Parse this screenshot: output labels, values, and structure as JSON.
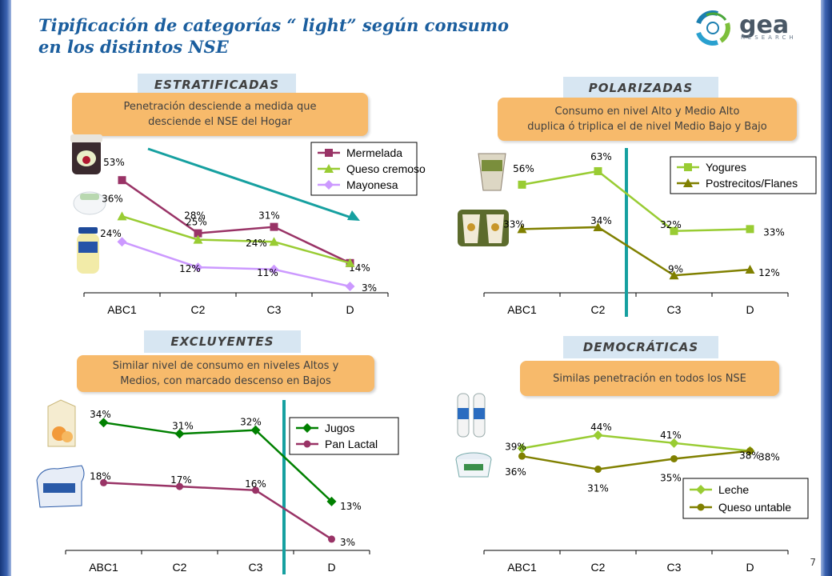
{
  "title": {
    "line1": "Tipificación de categorías “ light” según consumo",
    "line2": "en los distintos NSE"
  },
  "logo": {
    "text": "gea",
    "subtext": "RESEARCH"
  },
  "page_number": "7",
  "colors": {
    "title": "#1b5e9e",
    "note_bg": "#f7ba6b",
    "category_bg": "#d7e6f2",
    "divider": "#16a0a0"
  },
  "panels": [
    {
      "category": "ESTRATIFICADAS",
      "note": [
        "Penetración desciende a medida que",
        "desciende el NSE del Hogar"
      ]
    },
    {
      "category": "POLARIZADAS",
      "note": [
        "Consumo en nivel Alto y Medio Alto",
        "duplica ó triplica el de nivel Medio Bajo y Bajo"
      ]
    },
    {
      "category": "EXCLUYENTES",
      "note": [
        "Similar nivel de consumo en niveles Altos y",
        "Medios, con  marcado descenso en Bajos"
      ]
    },
    {
      "category": "DEMOCRÁTICAS",
      "note": [
        "Similas penetración en todos los NSE"
      ]
    }
  ],
  "chart_data": [
    {
      "type": "line",
      "categories": [
        "ABC1",
        "C2",
        "C3",
        "D"
      ],
      "series": [
        {
          "name": "Mermelada",
          "values": [
            53,
            28,
            31,
            14
          ],
          "labels": [
            "53%",
            "28%",
            "31%",
            "14%"
          ],
          "color": "#993366",
          "marker": "square"
        },
        {
          "name": "Queso cremoso",
          "values": [
            36,
            25,
            24,
            14
          ],
          "labels": [
            "36%",
            "25%",
            "24%",
            ""
          ],
          "color": "#99cc33",
          "marker": "triangle"
        },
        {
          "name": "Mayonesa",
          "values": [
            24,
            12,
            11,
            3
          ],
          "labels": [
            "24%",
            "12%",
            "11%",
            "3%"
          ],
          "color": "#cc99ff",
          "marker": "diamond"
        }
      ],
      "ylim": [
        0,
        70
      ],
      "legend": "top-right",
      "trend_arrow": true,
      "divider_after": null
    },
    {
      "type": "line",
      "categories": [
        "ABC1",
        "C2",
        "C3",
        "D"
      ],
      "series": [
        {
          "name": "Yogures",
          "values": [
            56,
            63,
            32,
            33
          ],
          "labels": [
            "56%",
            "63%",
            "32%",
            "33%"
          ],
          "color": "#99cc33",
          "marker": "square"
        },
        {
          "name": "Postrecitos/Flanes",
          "values": [
            33,
            34,
            9,
            12
          ],
          "labels": [
            "33%",
            "34%",
            "9%",
            "12%"
          ],
          "color": "#808000",
          "marker": "triangle"
        }
      ],
      "ylim": [
        0,
        75
      ],
      "legend": "top-right",
      "trend_arrow": false,
      "divider_after": 1
    },
    {
      "type": "line",
      "categories": [
        "ABC1",
        "C2",
        "C3",
        "D"
      ],
      "series": [
        {
          "name": "Jugos",
          "values": [
            34,
            31,
            32,
            13
          ],
          "labels": [
            "34%",
            "31%",
            "32%",
            "13%"
          ],
          "color": "#008000",
          "marker": "diamond"
        },
        {
          "name": "Pan Lactal",
          "values": [
            18,
            17,
            16,
            3
          ],
          "labels": [
            "18%",
            "17%",
            "16%",
            "3%"
          ],
          "color": "#993366",
          "marker": "circle"
        }
      ],
      "ylim": [
        0,
        40
      ],
      "legend": "top-right",
      "trend_arrow": false,
      "divider_after": 2
    },
    {
      "type": "line",
      "categories": [
        "ABC1",
        "C2",
        "C3",
        "D"
      ],
      "series": [
        {
          "name": "Leche",
          "values": [
            39,
            44,
            41,
            38
          ],
          "labels": [
            "39%",
            "44%",
            "41%",
            "38%"
          ],
          "color": "#99cc33",
          "marker": "diamond"
        },
        {
          "name": "Queso untable",
          "values": [
            36,
            31,
            35,
            38
          ],
          "labels": [
            "36%",
            "31%",
            "35%",
            "38%"
          ],
          "color": "#808000",
          "marker": "circle"
        }
      ],
      "ylim": [
        0,
        55
      ],
      "legend": "bottom-right",
      "trend_arrow": false,
      "divider_after": null
    }
  ]
}
